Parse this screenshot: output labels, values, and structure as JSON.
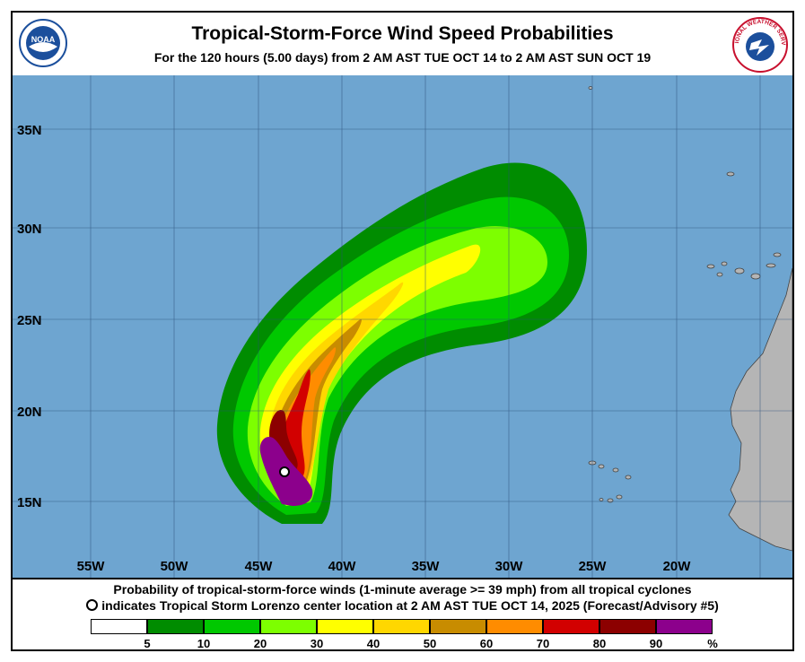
{
  "header": {
    "title": "Tropical-Storm-Force Wind Speed Probabilities",
    "subtitle": "For the 120 hours (5.00 days) from 2 AM AST TUE OCT 14 to 2 AM AST SUN OCT 19",
    "noaa_logo_text": "NOAA",
    "nws_logo_text": "NATIONAL WEATHER SERVICE"
  },
  "map": {
    "ocean_color": "#6ea5d0",
    "land_color": "#b5b5b5",
    "lat_labels": [
      "35N",
      "30N",
      "25N",
      "20N",
      "15N"
    ],
    "lon_labels": [
      "55W",
      "50W",
      "45W",
      "40W",
      "35W",
      "30W",
      "25W",
      "20W"
    ],
    "storm_marker": {
      "name": "Tropical Storm Lorenzo",
      "lat": 16.7,
      "lon": -43.3
    }
  },
  "footer": {
    "line1": "Probability of tropical-storm-force winds (1-minute average >= 39 mph) from all tropical cyclones",
    "line2": "indicates Tropical Storm Lorenzo center location at 2 AM AST TUE OCT 14, 2025 (Forecast/Advisory #5)"
  },
  "legend": {
    "colors": [
      "#ffffff",
      "#008c00",
      "#00c800",
      "#7dff00",
      "#ffff00",
      "#ffd700",
      "#c88c00",
      "#ff8c00",
      "#d20000",
      "#8c0000",
      "#8c008c"
    ],
    "ticks": [
      "5",
      "10",
      "20",
      "30",
      "40",
      "50",
      "60",
      "70",
      "80",
      "90",
      "%"
    ]
  }
}
